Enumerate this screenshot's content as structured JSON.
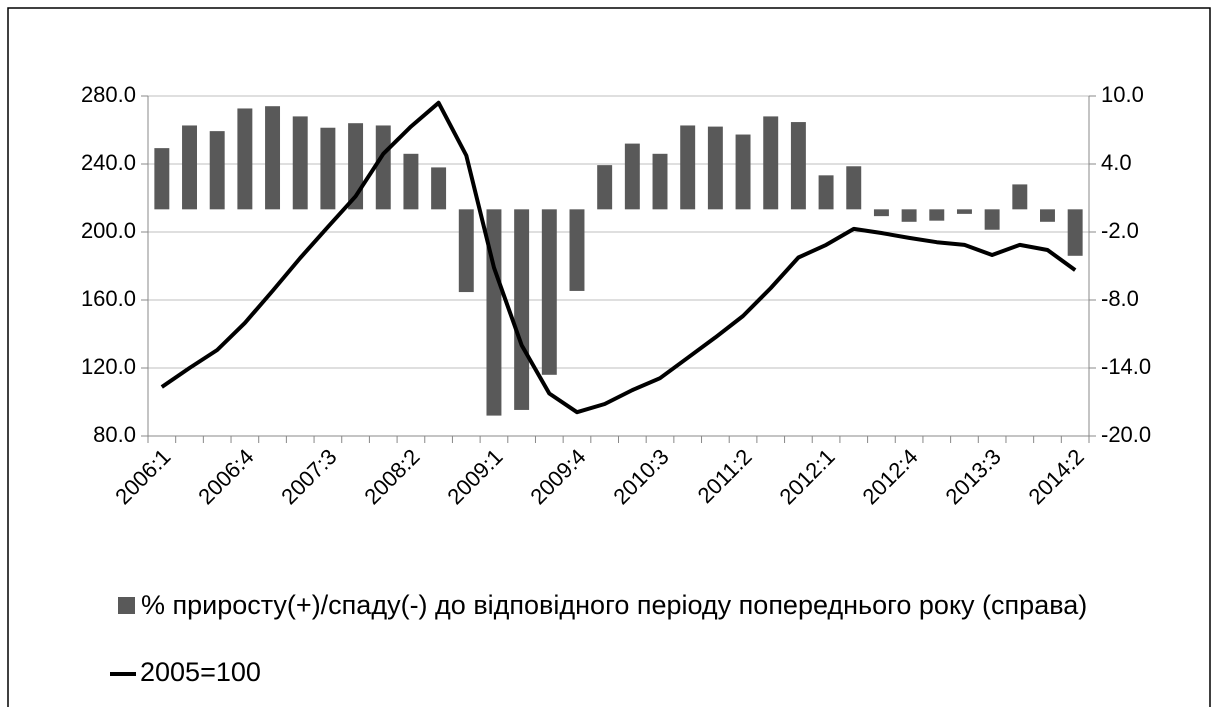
{
  "chart_data": {
    "type": "bar-line",
    "categories": [
      "2006:1",
      null,
      null,
      "2006:4",
      null,
      null,
      "2007:3",
      null,
      null,
      "2008:2",
      null,
      null,
      "2009:1",
      null,
      null,
      "2009:4",
      null,
      null,
      "2010:3",
      null,
      null,
      "2011:2",
      null,
      null,
      "2012:1",
      null,
      null,
      "2012:4",
      null,
      null,
      "2013:3",
      null,
      null,
      "2014:2"
    ],
    "series": [
      {
        "name": "% приросту(+)/спаду(-) до відповідного періоду попереднього року (справа)",
        "color": "#595959",
        "type": "bar",
        "axis": "y2",
        "values": [
          5.4,
          7.4,
          6.9,
          8.9,
          9.1,
          8.2,
          7.2,
          7.6,
          7.4,
          4.9,
          3.7,
          -7.3,
          -18.2,
          -17.7,
          -14.6,
          -7.2,
          3.9,
          5.8,
          4.9,
          7.4,
          7.3,
          6.6,
          8.2,
          7.7,
          3.0,
          3.8,
          -0.6,
          -1.1,
          -1.0,
          -0.4,
          -1.8,
          2.2,
          -1.1,
          -4.1
        ]
      },
      {
        "name": "2005=100",
        "color": "#000000",
        "type": "line",
        "axis": "y",
        "values": [
          108.8,
          120,
          130.6,
          146.5,
          165.3,
          184.7,
          203,
          221,
          246,
          262,
          276,
          245,
          179,
          133.5,
          105,
          94,
          98.8,
          107,
          114,
          126,
          138,
          150.6,
          167,
          185,
          192.4,
          201.8,
          199.4,
          196.5,
          194,
          192.4,
          186.5,
          192.4,
          189.4,
          177.6
        ]
      }
    ],
    "ylim": [
      80,
      280
    ],
    "yticks": [
      {
        "value": 80,
        "label": "80.0"
      },
      {
        "value": 120,
        "label": "120.0"
      },
      {
        "value": 160,
        "label": "160.0"
      },
      {
        "value": 200,
        "label": "200.0"
      },
      {
        "value": 240,
        "label": "240.0"
      },
      {
        "value": 280,
        "label": "280.0"
      }
    ],
    "y2lim": [
      -20,
      10
    ],
    "y2ticks": [
      {
        "value": -20,
        "label": "-20.0"
      },
      {
        "value": -14,
        "label": "-14.0"
      },
      {
        "value": -8,
        "label": "-8.0"
      },
      {
        "value": -2,
        "label": "-2.0"
      },
      {
        "value": 4,
        "label": "4.0"
      },
      {
        "value": 10,
        "label": "10.0"
      }
    ],
    "grid": true,
    "legend": "bottom"
  }
}
